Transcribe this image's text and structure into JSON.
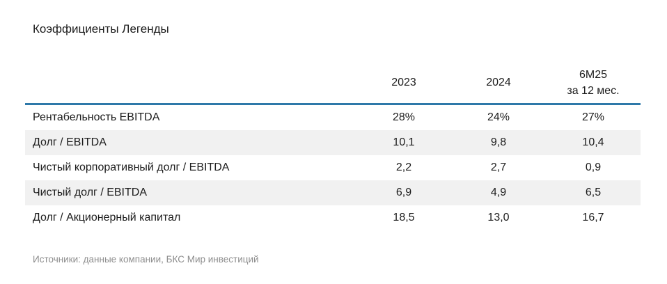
{
  "title": "Коэффициенты Легенды",
  "colors": {
    "accent_line": "#2e79a9",
    "row_stripe": "#f1f1f1",
    "text": "#1c1c1c",
    "muted_text": "#8e8e8e",
    "background": "#ffffff"
  },
  "chart_data": {
    "type": "table",
    "title": "Коэффициенты Легенды",
    "columns": [
      {
        "label": "2023",
        "sublabel": ""
      },
      {
        "label": "2024",
        "sublabel": ""
      },
      {
        "label": "6М25",
        "sublabel": "за 12 мес."
      }
    ],
    "rows": [
      {
        "label": "Рентабельность EBITDA",
        "values": [
          "28%",
          "24%",
          "27%"
        ]
      },
      {
        "label": "Долг / EBITDA",
        "values": [
          "10,1",
          "9,8",
          "10,4"
        ]
      },
      {
        "label": "Чистый корпоративный долг / EBITDA",
        "values": [
          "2,2",
          "2,7",
          "0,9"
        ]
      },
      {
        "label": "Чистый долг / EBITDA",
        "values": [
          "6,9",
          "4,9",
          "6,5"
        ]
      },
      {
        "label": "Долг / Акционерный капитал",
        "values": [
          "18,5",
          "13,0",
          "16,7"
        ]
      }
    ],
    "legend_position": "none",
    "grid": false
  },
  "footer": {
    "sources": "Источники: данные компании, БКС Мир инвестиций"
  }
}
